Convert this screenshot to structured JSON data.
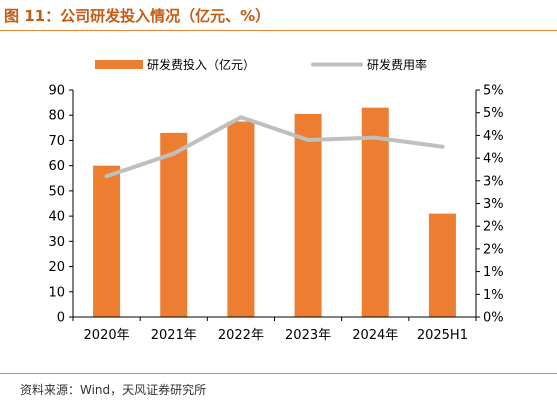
{
  "header": {
    "title": "图 11：公司研发投入情况（亿元、%）"
  },
  "footer": {
    "source": "资料来源：Wind，天风证券研究所"
  },
  "colors": {
    "bar": "#ed7d31",
    "line": "#bfbfbf",
    "accent": "#c65a11"
  },
  "chart_data": {
    "type": "bar",
    "categories": [
      "2020年",
      "2021年",
      "2022年",
      "2023年",
      "2024年",
      "2025H1"
    ],
    "series": [
      {
        "name": "研发费投入（亿元）",
        "type": "bar",
        "axis": "left",
        "values": [
          60.0,
          73.0,
          77.5,
          80.5,
          83.0,
          41.0
        ]
      },
      {
        "name": "研发费用率",
        "type": "line",
        "axis": "right",
        "values": [
          3.1,
          3.6,
          4.4,
          3.9,
          3.95,
          3.75
        ]
      }
    ],
    "y_left": {
      "min": 0,
      "max": 90,
      "step": 10,
      "ticks": [
        "0",
        "10",
        "20",
        "30",
        "40",
        "50",
        "60",
        "70",
        "80",
        "90"
      ]
    },
    "y_right": {
      "min": 0,
      "max": 5,
      "step": 0.5,
      "ticks": [
        "0%",
        "1%",
        "1%",
        "2%",
        "2%",
        "3%",
        "3%",
        "4%",
        "4%",
        "5%",
        "5%"
      ]
    },
    "legend": {
      "position": "top"
    },
    "grid": false
  }
}
